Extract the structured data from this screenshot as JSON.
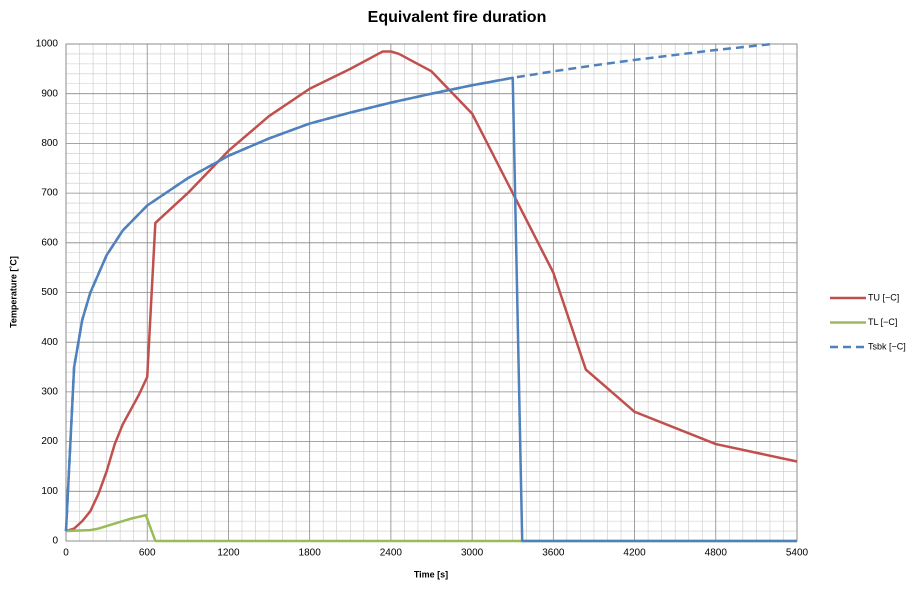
{
  "chart_data": {
    "type": "line",
    "title": "Equivalent fire duration",
    "xlabel": "Time  [s]",
    "ylabel": "Temperature  [˚C]",
    "xlim": [
      0,
      5400
    ],
    "xticks": [
      0,
      600,
      1200,
      1800,
      2400,
      3000,
      3600,
      4200,
      4800,
      5400
    ],
    "ylim": [
      0,
      1000
    ],
    "yticks": [
      0,
      100,
      200,
      300,
      400,
      500,
      600,
      700,
      800,
      900,
      1000
    ],
    "grid": true,
    "legend": "right",
    "series": [
      {
        "name": "TU [−C]",
        "color": "#c0504d",
        "x": [
          0,
          60,
          120,
          180,
          240,
          300,
          360,
          420,
          480,
          540,
          600,
          660,
          900,
          1200,
          1500,
          1800,
          2100,
          2340,
          2400,
          2460,
          2700,
          3000,
          3300,
          3600,
          3840,
          4200,
          4800,
          5400
        ],
        "values": [
          20,
          25,
          40,
          60,
          95,
          140,
          195,
          235,
          265,
          295,
          330,
          640,
          700,
          785,
          855,
          910,
          950,
          985,
          985,
          980,
          945,
          860,
          700,
          540,
          345,
          260,
          195,
          160
        ]
      },
      {
        "name": "TL [−C]",
        "color": "#9bbb59",
        "x": [
          0,
          180,
          240,
          360,
          480,
          590,
          660,
          5400
        ],
        "values": [
          20,
          22,
          25,
          35,
          45,
          52,
          0,
          0
        ]
      },
      {
        "name": "Tsbk [−C]",
        "color": "#4f81bd",
        "dashed": true,
        "x": [
          0,
          60,
          120,
          180,
          300,
          420,
          600,
          900,
          1200,
          1500,
          1800,
          2100,
          2400,
          2700,
          3000,
          3300,
          3600,
          3900,
          4200,
          4500,
          4800,
          5220
        ],
        "values": [
          20,
          350,
          445,
          500,
          575,
          625,
          675,
          730,
          775,
          810,
          840,
          862,
          882,
          900,
          917,
          932,
          945,
          957,
          968,
          978,
          988,
          1000
        ]
      },
      {
        "color": "#4f81bd",
        "x": [
          0,
          60,
          120,
          180,
          300,
          420,
          600,
          900,
          1200,
          1500,
          1800,
          2100,
          2400,
          2700,
          3000,
          3300,
          3370,
          5400
        ],
        "values": [
          20,
          350,
          445,
          500,
          575,
          625,
          675,
          730,
          775,
          810,
          840,
          862,
          882,
          900,
          917,
          932,
          0,
          0
        ]
      }
    ]
  }
}
